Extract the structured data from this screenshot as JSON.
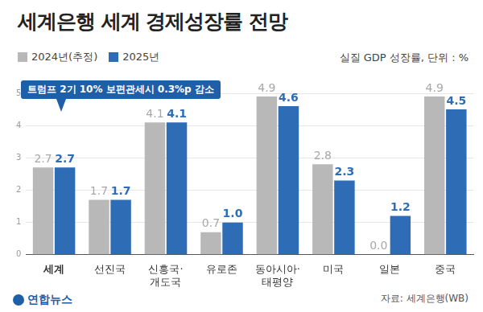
{
  "chart_data": {
    "type": "bar",
    "title": "세계은행 세계 경제성장률 전망",
    "subtitle": "실질 GDP 성장률, 단위 : %",
    "annotation": "트럼프 2기 10% 보편관세시 0.3%p 감소",
    "source": "자료: 세계은행(WB)",
    "credit": "연합뉴스",
    "categories": [
      "세계",
      "선진국",
      "신흥국·개도국",
      "유로존",
      "동아시아·태평양",
      "미국",
      "일본",
      "중국"
    ],
    "series": [
      {
        "name": "2024년(추정)",
        "color": "#b8b8b8",
        "values": [
          2.7,
          1.7,
          4.1,
          0.7,
          4.9,
          2.8,
          0.0,
          4.9
        ],
        "value_labels": [
          "2.7",
          "1.7",
          "4.1",
          "0.7",
          "4.9",
          "2.8",
          "0.0",
          "4.9"
        ]
      },
      {
        "name": "2025년",
        "color": "#2e6db5",
        "values": [
          2.7,
          1.7,
          4.1,
          1.0,
          4.6,
          2.3,
          1.2,
          4.5
        ],
        "value_labels": [
          "2.7",
          "1.7",
          "4.1",
          "1.0",
          "4.6",
          "2.3",
          "1.2",
          "4.5"
        ]
      }
    ],
    "ylim": [
      0,
      5
    ],
    "yticks": [
      0,
      1,
      2,
      3,
      4,
      5
    ],
    "grid": true,
    "legend": "top-left",
    "data_labels": true
  }
}
